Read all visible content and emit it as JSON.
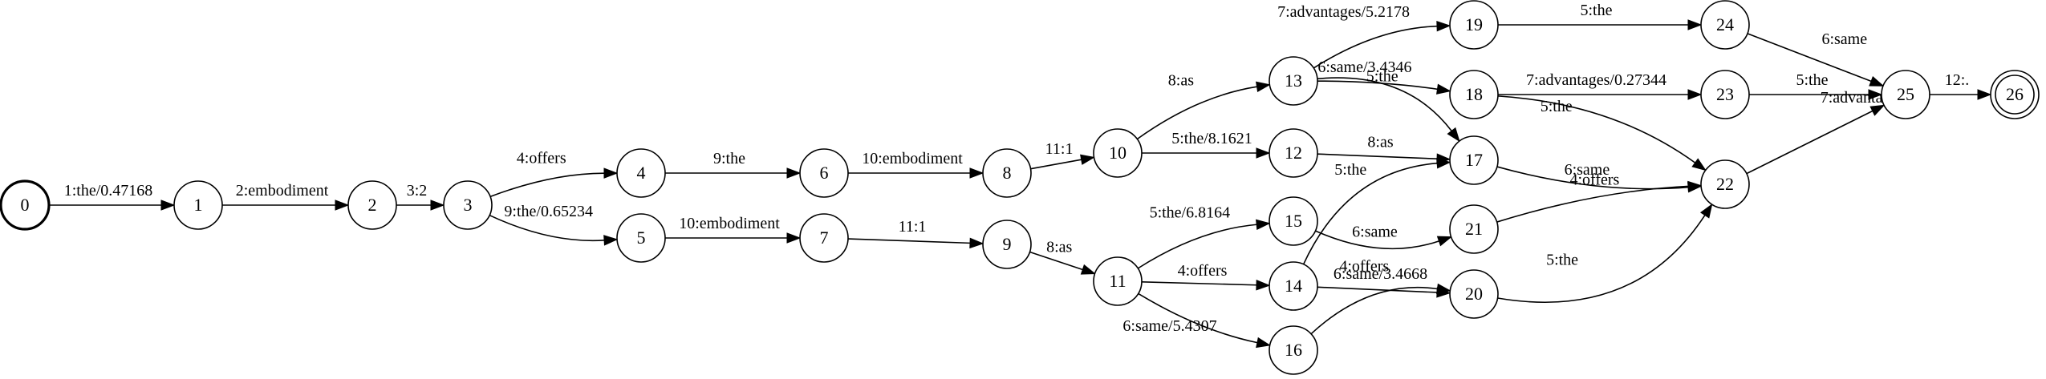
{
  "diagram": {
    "type": "finite-state-transducer",
    "start_state": "0",
    "final_states": [
      "26"
    ],
    "states": [
      "0",
      "1",
      "2",
      "3",
      "4",
      "5",
      "6",
      "7",
      "8",
      "9",
      "10",
      "11",
      "12",
      "13",
      "14",
      "15",
      "16",
      "17",
      "18",
      "19",
      "20",
      "21",
      "22",
      "23",
      "24",
      "25",
      "26"
    ],
    "edges": [
      {
        "from": "0",
        "to": "1",
        "label": "1:the/0.47168"
      },
      {
        "from": "1",
        "to": "2",
        "label": "2:embodiment"
      },
      {
        "from": "2",
        "to": "3",
        "label": "3:2"
      },
      {
        "from": "3",
        "to": "4",
        "label": "4:offers"
      },
      {
        "from": "3",
        "to": "5",
        "label": "9:the/0.65234"
      },
      {
        "from": "4",
        "to": "6",
        "label": "9:the"
      },
      {
        "from": "5",
        "to": "7",
        "label": "10:embodiment"
      },
      {
        "from": "6",
        "to": "8",
        "label": "10:embodiment"
      },
      {
        "from": "7",
        "to": "9",
        "label": "11:1"
      },
      {
        "from": "8",
        "to": "10",
        "label": "11:1"
      },
      {
        "from": "9",
        "to": "11",
        "label": "8:as"
      },
      {
        "from": "10",
        "to": "13",
        "label": "8:as"
      },
      {
        "from": "10",
        "to": "12",
        "label": "5:the/8.1621"
      },
      {
        "from": "11",
        "to": "15",
        "label": "5:the/6.8164"
      },
      {
        "from": "11",
        "to": "14",
        "label": "4:offers"
      },
      {
        "from": "11",
        "to": "16",
        "label": "6:same/5.4307"
      },
      {
        "from": "13",
        "to": "19",
        "label": "7:advantages/5.2178"
      },
      {
        "from": "13",
        "to": "18",
        "label": "6:same/3.4346"
      },
      {
        "from": "13",
        "to": "17",
        "label": "5:the"
      },
      {
        "from": "12",
        "to": "17",
        "label": "8:as"
      },
      {
        "from": "14",
        "to": "17",
        "label": "5:the"
      },
      {
        "from": "14",
        "to": "20",
        "label": "6:same/3.4668"
      },
      {
        "from": "15",
        "to": "21",
        "label": "6:same"
      },
      {
        "from": "16",
        "to": "20",
        "label": "4:offers"
      },
      {
        "from": "19",
        "to": "24",
        "label": "5:the"
      },
      {
        "from": "18",
        "to": "23",
        "label": "7:advantages/0.27344"
      },
      {
        "from": "18",
        "to": "22",
        "label": "5:the"
      },
      {
        "from": "17",
        "to": "22",
        "label": "6:same"
      },
      {
        "from": "21",
        "to": "22",
        "label": "4:offers"
      },
      {
        "from": "20",
        "to": "22",
        "label": "5:the"
      },
      {
        "from": "24",
        "to": "25",
        "label": "6:same"
      },
      {
        "from": "23",
        "to": "25",
        "label": "5:the"
      },
      {
        "from": "22",
        "to": "25",
        "label": "7:advantages"
      },
      {
        "from": "25",
        "to": "26",
        "label": "12:."
      }
    ]
  }
}
